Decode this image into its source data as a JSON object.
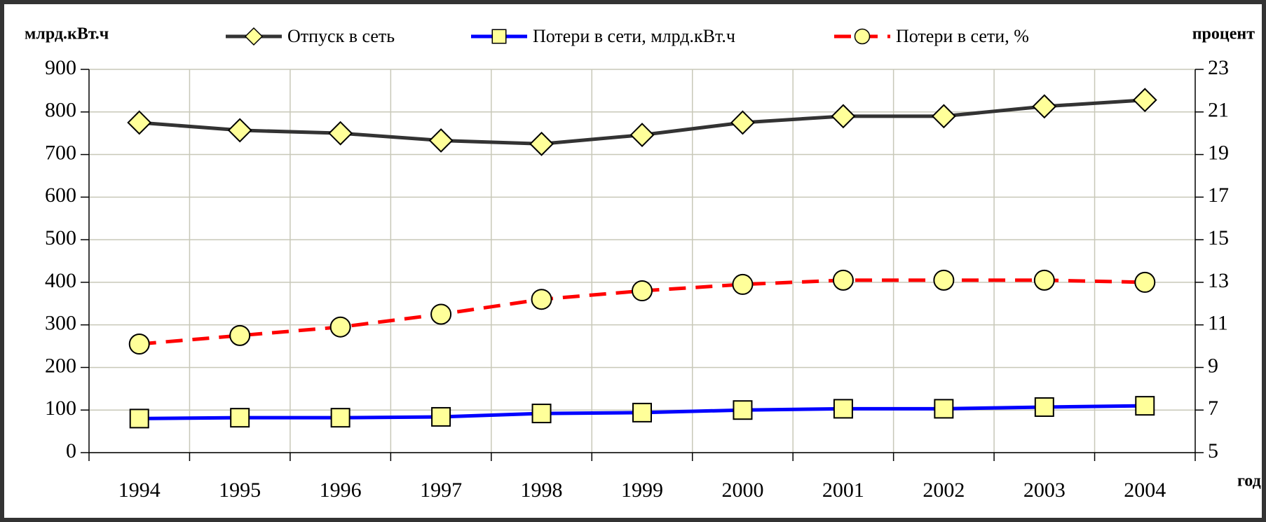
{
  "chart_data": {
    "type": "line",
    "y_label": "млрд.кВт.ч",
    "y2_label": "процент",
    "x_label": "год",
    "categories": [
      "1994",
      "1995",
      "1996",
      "1997",
      "1998",
      "1999",
      "2000",
      "2001",
      "2002",
      "2003",
      "2004"
    ],
    "series": [
      {
        "name": "Отпуск в сеть",
        "color": "#333333",
        "marker": "diamond",
        "values": [
          775,
          757,
          750,
          733,
          725,
          746,
          775,
          790,
          790,
          813,
          828
        ]
      },
      {
        "name": "Потери в сети, млрд.кВт.ч",
        "color": "#0000ff",
        "marker": "square",
        "values": [
          80,
          82,
          82,
          84,
          92,
          94,
          100,
          103,
          103,
          107,
          110
        ]
      },
      {
        "name": "Потери в сети, %",
        "color": "#ff0000",
        "marker": "circle",
        "dashed": true,
        "axis": "y2",
        "values": [
          10.1,
          10.5,
          10.9,
          11.5,
          12.2,
          12.6,
          12.9,
          13.1,
          13.1,
          13.1,
          13.0
        ]
      }
    ],
    "marker_color": "#ffff99",
    "ylim": [
      0,
      900
    ],
    "yticks": [
      0,
      100,
      200,
      300,
      400,
      500,
      600,
      700,
      800,
      900
    ],
    "y2lim": [
      5,
      23
    ],
    "y2ticks": [
      5,
      7,
      9,
      11,
      13,
      15,
      17,
      19,
      21,
      23
    ],
    "grid": true
  }
}
